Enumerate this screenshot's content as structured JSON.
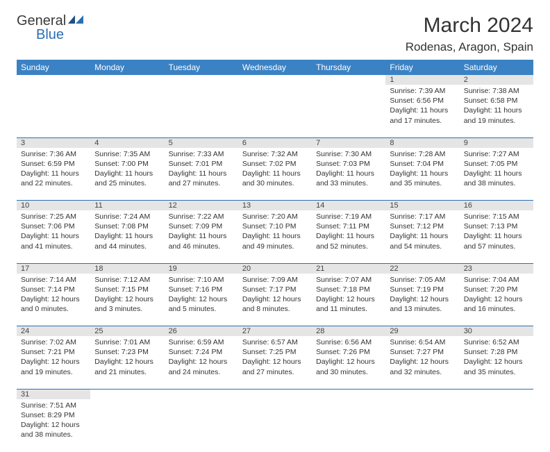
{
  "brand": {
    "name": "General",
    "sub": "Blue"
  },
  "title": "March 2024",
  "location": "Rodenas, Aragon, Spain",
  "colors": {
    "header_bg": "#3b82c4",
    "header_text": "#ffffff",
    "daynum_bg": "#e5e5e5",
    "rule": "#2a6fb5",
    "text": "#333333",
    "brand_blue": "#2a6fb5"
  },
  "weekdays": [
    "Sunday",
    "Monday",
    "Tuesday",
    "Wednesday",
    "Thursday",
    "Friday",
    "Saturday"
  ],
  "weeks": [
    [
      null,
      null,
      null,
      null,
      null,
      {
        "n": "1",
        "sr": "7:39 AM",
        "ss": "6:56 PM",
        "dl": "11 hours and 17 minutes."
      },
      {
        "n": "2",
        "sr": "7:38 AM",
        "ss": "6:58 PM",
        "dl": "11 hours and 19 minutes."
      }
    ],
    [
      {
        "n": "3",
        "sr": "7:36 AM",
        "ss": "6:59 PM",
        "dl": "11 hours and 22 minutes."
      },
      {
        "n": "4",
        "sr": "7:35 AM",
        "ss": "7:00 PM",
        "dl": "11 hours and 25 minutes."
      },
      {
        "n": "5",
        "sr": "7:33 AM",
        "ss": "7:01 PM",
        "dl": "11 hours and 27 minutes."
      },
      {
        "n": "6",
        "sr": "7:32 AM",
        "ss": "7:02 PM",
        "dl": "11 hours and 30 minutes."
      },
      {
        "n": "7",
        "sr": "7:30 AM",
        "ss": "7:03 PM",
        "dl": "11 hours and 33 minutes."
      },
      {
        "n": "8",
        "sr": "7:28 AM",
        "ss": "7:04 PM",
        "dl": "11 hours and 35 minutes."
      },
      {
        "n": "9",
        "sr": "7:27 AM",
        "ss": "7:05 PM",
        "dl": "11 hours and 38 minutes."
      }
    ],
    [
      {
        "n": "10",
        "sr": "7:25 AM",
        "ss": "7:06 PM",
        "dl": "11 hours and 41 minutes."
      },
      {
        "n": "11",
        "sr": "7:24 AM",
        "ss": "7:08 PM",
        "dl": "11 hours and 44 minutes."
      },
      {
        "n": "12",
        "sr": "7:22 AM",
        "ss": "7:09 PM",
        "dl": "11 hours and 46 minutes."
      },
      {
        "n": "13",
        "sr": "7:20 AM",
        "ss": "7:10 PM",
        "dl": "11 hours and 49 minutes."
      },
      {
        "n": "14",
        "sr": "7:19 AM",
        "ss": "7:11 PM",
        "dl": "11 hours and 52 minutes."
      },
      {
        "n": "15",
        "sr": "7:17 AM",
        "ss": "7:12 PM",
        "dl": "11 hours and 54 minutes."
      },
      {
        "n": "16",
        "sr": "7:15 AM",
        "ss": "7:13 PM",
        "dl": "11 hours and 57 minutes."
      }
    ],
    [
      {
        "n": "17",
        "sr": "7:14 AM",
        "ss": "7:14 PM",
        "dl": "12 hours and 0 minutes."
      },
      {
        "n": "18",
        "sr": "7:12 AM",
        "ss": "7:15 PM",
        "dl": "12 hours and 3 minutes."
      },
      {
        "n": "19",
        "sr": "7:10 AM",
        "ss": "7:16 PM",
        "dl": "12 hours and 5 minutes."
      },
      {
        "n": "20",
        "sr": "7:09 AM",
        "ss": "7:17 PM",
        "dl": "12 hours and 8 minutes."
      },
      {
        "n": "21",
        "sr": "7:07 AM",
        "ss": "7:18 PM",
        "dl": "12 hours and 11 minutes."
      },
      {
        "n": "22",
        "sr": "7:05 AM",
        "ss": "7:19 PM",
        "dl": "12 hours and 13 minutes."
      },
      {
        "n": "23",
        "sr": "7:04 AM",
        "ss": "7:20 PM",
        "dl": "12 hours and 16 minutes."
      }
    ],
    [
      {
        "n": "24",
        "sr": "7:02 AM",
        "ss": "7:21 PM",
        "dl": "12 hours and 19 minutes."
      },
      {
        "n": "25",
        "sr": "7:01 AM",
        "ss": "7:23 PM",
        "dl": "12 hours and 21 minutes."
      },
      {
        "n": "26",
        "sr": "6:59 AM",
        "ss": "7:24 PM",
        "dl": "12 hours and 24 minutes."
      },
      {
        "n": "27",
        "sr": "6:57 AM",
        "ss": "7:25 PM",
        "dl": "12 hours and 27 minutes."
      },
      {
        "n": "28",
        "sr": "6:56 AM",
        "ss": "7:26 PM",
        "dl": "12 hours and 30 minutes."
      },
      {
        "n": "29",
        "sr": "6:54 AM",
        "ss": "7:27 PM",
        "dl": "12 hours and 32 minutes."
      },
      {
        "n": "30",
        "sr": "6:52 AM",
        "ss": "7:28 PM",
        "dl": "12 hours and 35 minutes."
      }
    ],
    [
      {
        "n": "31",
        "sr": "7:51 AM",
        "ss": "8:29 PM",
        "dl": "12 hours and 38 minutes."
      },
      null,
      null,
      null,
      null,
      null,
      null
    ]
  ],
  "labels": {
    "sunrise": "Sunrise:",
    "sunset": "Sunset:",
    "daylight": "Daylight:"
  }
}
